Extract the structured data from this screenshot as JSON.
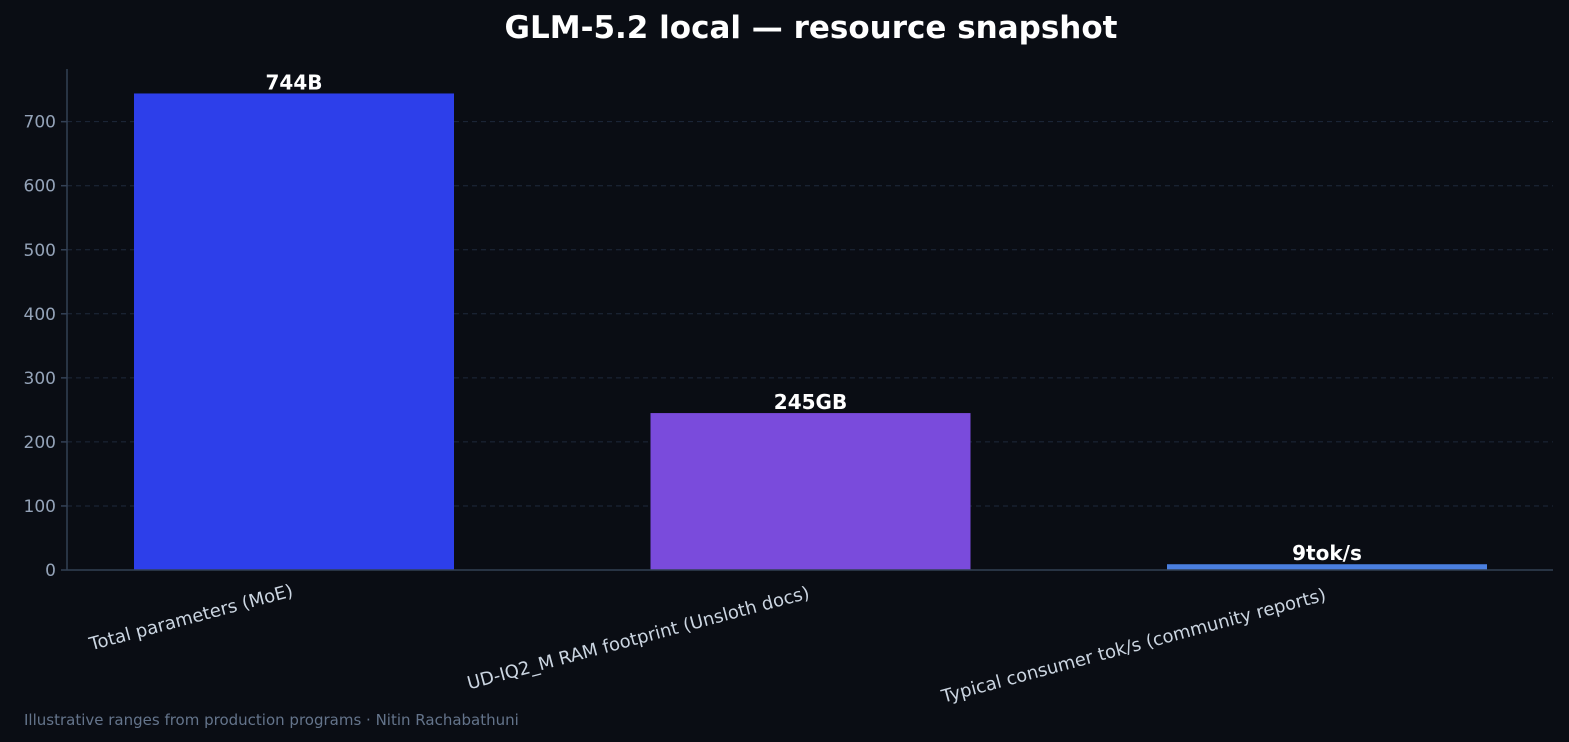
{
  "chart_data": {
    "type": "bar",
    "title": "GLM-5.2 local — resource snapshot",
    "categories": [
      "Total parameters (MoE)",
      "UD-IQ2_M RAM footprint (Unsloth docs)",
      "Typical consumer tok/s (community reports)"
    ],
    "values": [
      744,
      245,
      9
    ],
    "data_labels": [
      "744B",
      "245GB",
      "9tok/s"
    ],
    "colors": [
      "#2d3fea",
      "#7a4bdc",
      "#4a7fe0"
    ],
    "ylim": [
      0,
      780
    ],
    "yticks": [
      0,
      100,
      200,
      300,
      400,
      500,
      600,
      700
    ],
    "xlabel": "",
    "ylabel": "",
    "grid": true,
    "legend": "none"
  },
  "footer": "Illustrative ranges from production programs · Nitin Rachabathuni"
}
